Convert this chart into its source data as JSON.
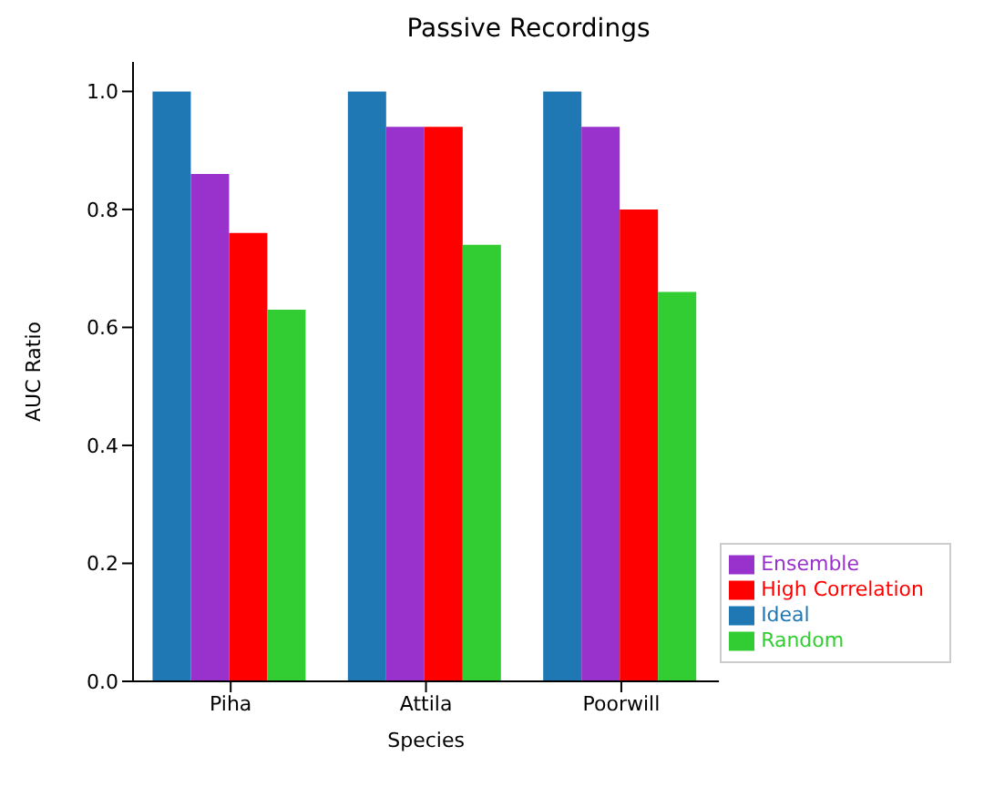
{
  "chart_data": {
    "type": "bar",
    "title": "Passive Recordings",
    "xlabel": "Species",
    "ylabel": "AUC Ratio",
    "categories": [
      "Piha",
      "Attila",
      "Poorwill"
    ],
    "series": [
      {
        "name": "Ideal",
        "color": "#1f77b4",
        "values": [
          1.0,
          1.0,
          1.0
        ]
      },
      {
        "name": "Ensemble",
        "color": "#9932cc",
        "values": [
          0.86,
          0.94,
          0.94
        ]
      },
      {
        "name": "High Correlation",
        "color": "#ff0000",
        "values": [
          0.76,
          0.94,
          0.8
        ]
      },
      {
        "name": "Random",
        "color": "#32cd32",
        "values": [
          0.63,
          0.74,
          0.66
        ]
      }
    ],
    "ylim": [
      0,
      1.05
    ],
    "yticks": [
      {
        "value": 0,
        "label": "0.0"
      },
      {
        "value": 0.2,
        "label": "0.2"
      },
      {
        "value": 0.4,
        "label": "0.4"
      },
      {
        "value": 0.6,
        "label": "0.6"
      },
      {
        "value": 0.8,
        "label": "0.8"
      },
      {
        "value": 1.0,
        "label": "1.0"
      }
    ],
    "grid": false,
    "legend": "bottom right"
  }
}
